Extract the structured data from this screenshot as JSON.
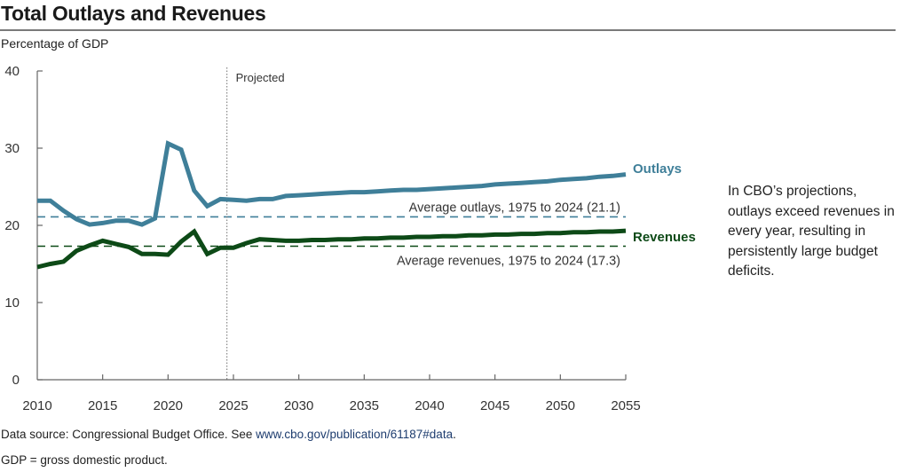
{
  "title": "Total Outlays and Revenues",
  "units_label": "Percentage of GDP",
  "note": "In CBO’s projections, outlays exceed revenues in every year, resulting in persistently large budget deficits.",
  "source": {
    "prefix": "Data source: Congressional Budget Office. See ",
    "link_text": "www.cbo.gov/publication/61187#data",
    "suffix": "."
  },
  "gdp_note": "GDP = gross domestic product.",
  "colors": {
    "outlays": "#3f7f99",
    "revenues": "#0d4a17",
    "axis": "#666666",
    "projected_line": "#888888"
  },
  "chart_data": {
    "type": "line",
    "title": "Total Outlays and Revenues",
    "xlabel": "",
    "ylabel": "Percentage of GDP",
    "xlim": [
      2010,
      2055
    ],
    "ylim": [
      0,
      40
    ],
    "x_ticks": [
      2010,
      2015,
      2020,
      2025,
      2030,
      2035,
      2040,
      2045,
      2050,
      2055
    ],
    "y_ticks": [
      0,
      10,
      20,
      30,
      40
    ],
    "grid": false,
    "projected_start": 2024.5,
    "projected_label": "Projected",
    "x": [
      2010,
      2011,
      2012,
      2013,
      2014,
      2015,
      2016,
      2017,
      2018,
      2019,
      2020,
      2021,
      2022,
      2023,
      2024,
      2025,
      2026,
      2027,
      2028,
      2029,
      2030,
      2031,
      2032,
      2033,
      2034,
      2035,
      2036,
      2037,
      2038,
      2039,
      2040,
      2041,
      2042,
      2043,
      2044,
      2045,
      2046,
      2047,
      2048,
      2049,
      2050,
      2051,
      2052,
      2053,
      2054,
      2055
    ],
    "series": [
      {
        "name": "Outlays",
        "color": "#3f7f99",
        "values": [
          23.2,
          23.2,
          21.9,
          20.8,
          20.1,
          20.3,
          20.6,
          20.6,
          20.1,
          20.9,
          30.6,
          29.8,
          24.5,
          22.5,
          23.4,
          23.3,
          23.2,
          23.4,
          23.4,
          23.8,
          23.9,
          24.0,
          24.1,
          24.2,
          24.3,
          24.3,
          24.4,
          24.5,
          24.6,
          24.6,
          24.7,
          24.8,
          24.9,
          25.0,
          25.1,
          25.3,
          25.4,
          25.5,
          25.6,
          25.7,
          25.9,
          26.0,
          26.1,
          26.3,
          26.4,
          26.6
        ]
      },
      {
        "name": "Revenues",
        "color": "#0d4a17",
        "values": [
          14.6,
          15.0,
          15.3,
          16.7,
          17.4,
          18.0,
          17.6,
          17.2,
          16.3,
          16.3,
          16.2,
          17.9,
          19.2,
          16.3,
          17.1,
          17.1,
          17.7,
          18.2,
          18.1,
          18.0,
          18.0,
          18.1,
          18.1,
          18.2,
          18.2,
          18.3,
          18.3,
          18.4,
          18.4,
          18.5,
          18.5,
          18.6,
          18.6,
          18.7,
          18.7,
          18.8,
          18.8,
          18.9,
          18.9,
          19.0,
          19.0,
          19.1,
          19.1,
          19.2,
          19.2,
          19.3
        ]
      }
    ],
    "reference_lines": [
      {
        "name": "Average outlays",
        "value": 21.1,
        "label": "Average outlays, 1975 to 2024 (21.1)",
        "color": "#3f7f99",
        "style": "dashed"
      },
      {
        "name": "Average revenues",
        "value": 17.3,
        "label": "Average revenues, 1975 to 2024 (17.3)",
        "color": "#0d4a17",
        "style": "dashed"
      }
    ],
    "series_labels": [
      "Outlays",
      "Revenues"
    ]
  }
}
